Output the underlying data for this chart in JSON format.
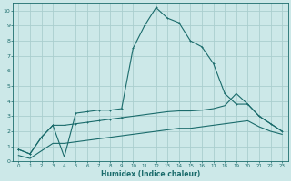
{
  "xlabel": "Humidex (Indice chaleur)",
  "bg_color": "#cce8e8",
  "grid_color": "#aacece",
  "line_color": "#1a6b6b",
  "xlim": [
    -0.5,
    23.5
  ],
  "ylim": [
    0,
    10.5
  ],
  "xticks": [
    0,
    1,
    2,
    3,
    4,
    5,
    6,
    7,
    8,
    9,
    10,
    11,
    12,
    13,
    14,
    15,
    16,
    17,
    18,
    19,
    20,
    21,
    22,
    23
  ],
  "yticks": [
    0,
    1,
    2,
    3,
    4,
    5,
    6,
    7,
    8,
    9,
    10
  ],
  "line1_x": [
    0,
    1,
    2,
    3,
    4,
    5,
    6,
    7,
    8,
    9,
    10,
    11,
    12,
    13,
    14,
    15,
    16,
    17,
    18,
    19,
    20,
    21,
    22,
    23
  ],
  "line1_y": [
    0.8,
    0.5,
    1.6,
    2.4,
    0.3,
    3.2,
    3.3,
    3.4,
    3.4,
    3.5,
    7.5,
    9.0,
    10.2,
    9.5,
    9.2,
    8.0,
    7.6,
    6.5,
    4.5,
    3.8,
    3.8,
    3.0,
    2.5,
    2.0
  ],
  "line2_x": [
    0,
    1,
    2,
    3,
    4,
    5,
    6,
    7,
    8,
    9,
    10,
    11,
    12,
    13,
    14,
    15,
    16,
    17,
    18,
    19,
    20,
    21,
    22,
    23
  ],
  "line2_y": [
    0.8,
    0.5,
    1.6,
    2.4,
    2.4,
    2.5,
    2.6,
    2.7,
    2.8,
    2.9,
    3.0,
    3.1,
    3.2,
    3.3,
    3.35,
    3.35,
    3.4,
    3.5,
    3.7,
    4.5,
    3.8,
    3.0,
    2.5,
    2.0
  ],
  "line3_x": [
    0,
    1,
    2,
    3,
    4,
    5,
    6,
    7,
    8,
    9,
    10,
    11,
    12,
    13,
    14,
    15,
    16,
    17,
    18,
    19,
    20,
    21,
    22,
    23
  ],
  "line3_y": [
    0.4,
    0.2,
    0.7,
    1.2,
    1.2,
    1.3,
    1.4,
    1.5,
    1.6,
    1.7,
    1.8,
    1.9,
    2.0,
    2.1,
    2.2,
    2.2,
    2.3,
    2.4,
    2.5,
    2.6,
    2.7,
    2.3,
    2.0,
    1.8
  ]
}
